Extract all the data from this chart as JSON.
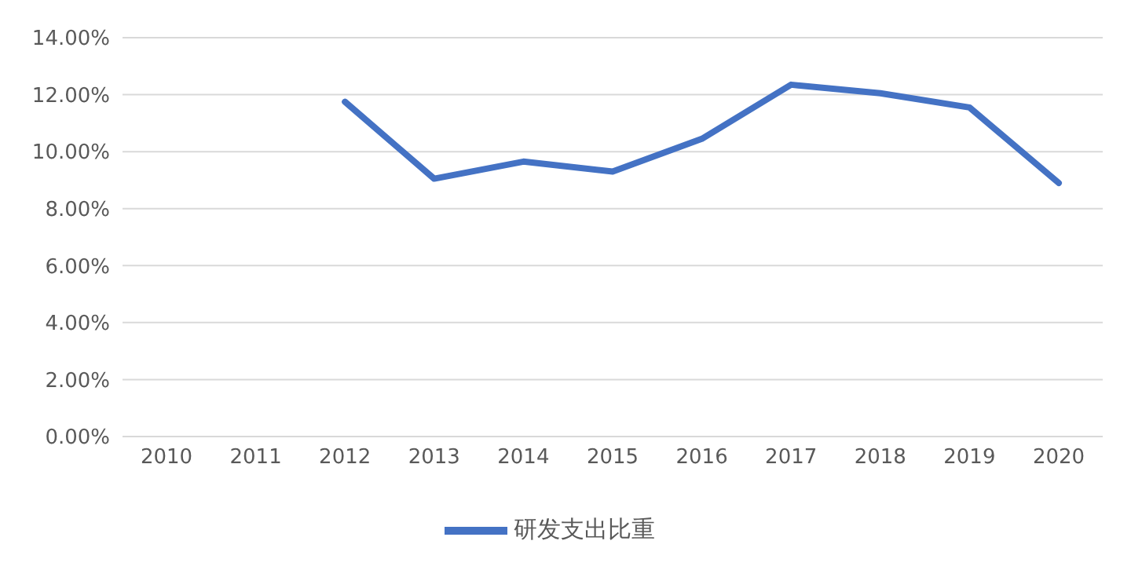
{
  "chart_data": {
    "type": "line",
    "categories": [
      "2010",
      "2011",
      "2012",
      "2013",
      "2014",
      "2015",
      "2016",
      "2017",
      "2018",
      "2019",
      "2020"
    ],
    "series": [
      {
        "name": "研发支出比重",
        "color": "#4472c4",
        "values": [
          null,
          null,
          11.75,
          9.05,
          9.65,
          9.3,
          10.45,
          12.35,
          12.05,
          11.55,
          8.9
        ]
      }
    ],
    "ylim": [
      0,
      14
    ],
    "yticks": [
      {
        "value": 0,
        "label": "0.00%"
      },
      {
        "value": 2,
        "label": "2.00%"
      },
      {
        "value": 4,
        "label": "4.00%"
      },
      {
        "value": 6,
        "label": "6.00%"
      },
      {
        "value": 8,
        "label": "8.00%"
      },
      {
        "value": 10,
        "label": "10.00%"
      },
      {
        "value": 12,
        "label": "12.00%"
      },
      {
        "value": 14,
        "label": "14.00%"
      }
    ],
    "grid": "y",
    "legend": "bottom",
    "marker": "none",
    "line_style": "solid"
  }
}
